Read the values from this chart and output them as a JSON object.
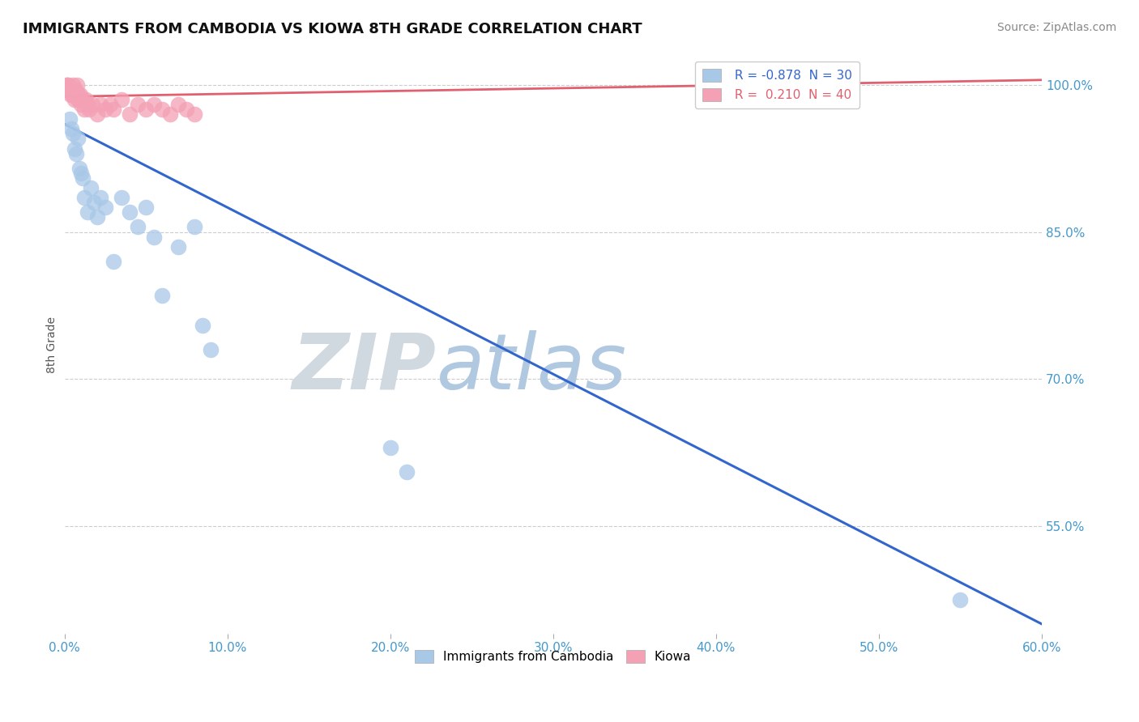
{
  "title": "IMMIGRANTS FROM CAMBODIA VS KIOWA 8TH GRADE CORRELATION CHART",
  "source": "Source: ZipAtlas.com",
  "ylabel": "8th Grade",
  "x_tick_labels": [
    "0.0%",
    "10.0%",
    "20.0%",
    "30.0%",
    "40.0%",
    "50.0%",
    "60.0%"
  ],
  "x_tick_values": [
    0.0,
    10.0,
    20.0,
    30.0,
    40.0,
    50.0,
    60.0
  ],
  "y_tick_labels": [
    "55.0%",
    "70.0%",
    "85.0%",
    "100.0%"
  ],
  "y_tick_values": [
    55.0,
    70.0,
    85.0,
    100.0
  ],
  "xlim": [
    0.0,
    60.0
  ],
  "ylim": [
    44.0,
    103.0
  ],
  "blue_label": "Immigrants from Cambodia",
  "pink_label": "Kiowa",
  "blue_R": -0.878,
  "blue_N": 30,
  "pink_R": 0.21,
  "pink_N": 40,
  "blue_color": "#a8c8e8",
  "pink_color": "#f4a0b5",
  "blue_line_color": "#3366cc",
  "pink_line_color": "#e06070",
  "watermark_left": "ZIP",
  "watermark_right": "atlas",
  "watermark_color_left": "#d0d8e0",
  "watermark_color_right": "#b0c8e0",
  "blue_x": [
    0.3,
    0.4,
    0.5,
    0.6,
    0.7,
    0.8,
    0.9,
    1.0,
    1.1,
    1.2,
    1.4,
    1.6,
    1.8,
    2.0,
    2.2,
    2.5,
    3.0,
    3.5,
    4.0,
    4.5,
    5.0,
    5.5,
    6.0,
    7.0,
    8.0,
    8.5,
    9.0,
    20.0,
    21.0,
    55.0
  ],
  "blue_y": [
    96.5,
    95.5,
    95.0,
    93.5,
    93.0,
    94.5,
    91.5,
    91.0,
    90.5,
    88.5,
    87.0,
    89.5,
    88.0,
    86.5,
    88.5,
    87.5,
    82.0,
    88.5,
    87.0,
    85.5,
    87.5,
    84.5,
    78.5,
    83.5,
    85.5,
    75.5,
    73.0,
    63.0,
    60.5,
    47.5
  ],
  "pink_x": [
    0.1,
    0.15,
    0.2,
    0.25,
    0.3,
    0.35,
    0.4,
    0.45,
    0.5,
    0.55,
    0.6,
    0.65,
    0.7,
    0.75,
    0.8,
    0.85,
    0.9,
    0.95,
    1.0,
    1.1,
    1.2,
    1.3,
    1.4,
    1.5,
    1.7,
    2.0,
    2.2,
    2.5,
    2.8,
    3.0,
    3.5,
    4.0,
    4.5,
    5.0,
    5.5,
    6.0,
    6.5,
    7.0,
    7.5,
    8.0
  ],
  "pink_y": [
    100.0,
    100.0,
    100.0,
    99.5,
    99.5,
    99.0,
    99.5,
    99.0,
    100.0,
    99.0,
    98.5,
    99.5,
    99.0,
    100.0,
    98.5,
    99.0,
    98.5,
    99.0,
    98.0,
    98.5,
    97.5,
    98.5,
    98.0,
    97.5,
    98.0,
    97.0,
    98.0,
    97.5,
    98.0,
    97.5,
    98.5,
    97.0,
    98.0,
    97.5,
    98.0,
    97.5,
    97.0,
    98.0,
    97.5,
    97.0
  ],
  "blue_line_x0": 0.0,
  "blue_line_y0": 96.0,
  "blue_line_x1": 60.0,
  "blue_line_y1": 45.0,
  "pink_line_x0": 0.0,
  "pink_line_y0": 98.8,
  "pink_line_x1": 60.0,
  "pink_line_y1": 100.5,
  "title_fontsize": 13,
  "axis_label_fontsize": 10,
  "tick_fontsize": 11,
  "legend_fontsize": 11,
  "source_fontsize": 10,
  "background_color": "#ffffff",
  "grid_color": "#cccccc",
  "axis_color": "#aaaaaa"
}
